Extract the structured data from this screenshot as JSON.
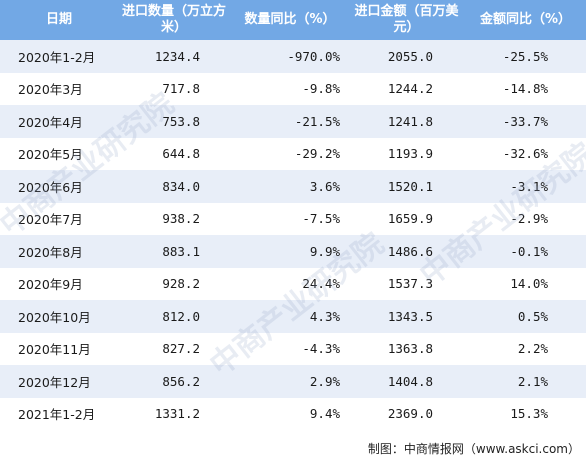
{
  "table": {
    "headers": [
      "日期",
      "进口数量（万立方米）",
      "数量同比（%）",
      "进口金额（百万美元）",
      "金额同比（%）"
    ],
    "rows": [
      {
        "date": "2020年1-2月",
        "qty": "1234.4",
        "qty_yoy": "-970.0%",
        "amount": "2055.0",
        "amount_yoy": "-25.5%"
      },
      {
        "date": "2020年3月",
        "qty": "717.8",
        "qty_yoy": "-9.8%",
        "amount": "1244.2",
        "amount_yoy": "-14.8%"
      },
      {
        "date": "2020年4月",
        "qty": "753.8",
        "qty_yoy": "-21.5%",
        "amount": "1241.8",
        "amount_yoy": "-33.7%"
      },
      {
        "date": "2020年5月",
        "qty": "644.8",
        "qty_yoy": "-29.2%",
        "amount": "1193.9",
        "amount_yoy": "-32.6%"
      },
      {
        "date": "2020年6月",
        "qty": "834.0",
        "qty_yoy": "3.6%",
        "amount": "1520.1",
        "amount_yoy": "-3.1%"
      },
      {
        "date": "2020年7月",
        "qty": "938.2",
        "qty_yoy": "-7.5%",
        "amount": "1659.9",
        "amount_yoy": "-2.9%"
      },
      {
        "date": "2020年8月",
        "qty": "883.1",
        "qty_yoy": "9.9%",
        "amount": "1486.6",
        "amount_yoy": "-0.1%"
      },
      {
        "date": "2020年9月",
        "qty": "928.2",
        "qty_yoy": "24.4%",
        "amount": "1537.3",
        "amount_yoy": "14.0%"
      },
      {
        "date": "2020年10月",
        "qty": "812.0",
        "qty_yoy": "4.3%",
        "amount": "1343.5",
        "amount_yoy": "0.5%"
      },
      {
        "date": "2020年11月",
        "qty": "827.2",
        "qty_yoy": "-4.3%",
        "amount": "1363.8",
        "amount_yoy": "2.2%"
      },
      {
        "date": "2020年12月",
        "qty": "856.2",
        "qty_yoy": "2.9%",
        "amount": "1404.8",
        "amount_yoy": "2.1%"
      },
      {
        "date": "2021年1-2月",
        "qty": "1331.2",
        "qty_yoy": "9.4%",
        "amount": "2369.0",
        "amount_yoy": "15.3%"
      }
    ]
  },
  "source": "制图：中商情报网（www.askci.com）",
  "watermark": "中商产业研究院",
  "colors": {
    "header_bg": "#72a8e5",
    "alt_row_bg": "#e8eef8"
  }
}
